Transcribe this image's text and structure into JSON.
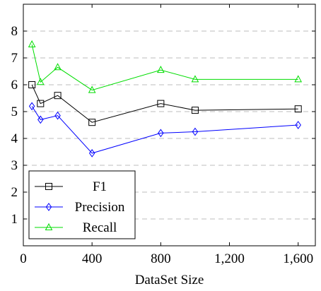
{
  "chart_data": {
    "type": "line",
    "xlabel": "DataSet Size",
    "ylabel": "",
    "xlim": [
      0,
      1700
    ],
    "ylim": [
      0,
      9
    ],
    "xticks": [
      0,
      400,
      800,
      1200,
      1600
    ],
    "xtick_labels": [
      "0",
      "400",
      "800",
      "1,200",
      "1,600"
    ],
    "yticks": [
      1,
      2,
      3,
      4,
      5,
      6,
      7,
      8
    ],
    "ytick_labels": [
      "1",
      "2",
      "3",
      "4",
      "5",
      "6",
      "7",
      "8"
    ],
    "grid": "horizontal dashed",
    "legend_position": "bottom-left",
    "x": [
      50,
      100,
      200,
      400,
      800,
      1000,
      1600
    ],
    "series": [
      {
        "name": "F1",
        "color": "#000000",
        "marker": "square",
        "values": [
          6.0,
          5.3,
          5.6,
          4.6,
          5.3,
          5.05,
          5.1
        ]
      },
      {
        "name": "Precision",
        "color": "#0000ff",
        "marker": "diamond",
        "values": [
          5.2,
          4.7,
          4.85,
          3.45,
          4.2,
          4.25,
          4.5
        ]
      },
      {
        "name": "Recall",
        "color": "#00dd00",
        "marker": "triangle",
        "values": [
          7.5,
          6.1,
          6.65,
          5.8,
          6.55,
          6.2,
          6.2
        ]
      }
    ]
  }
}
